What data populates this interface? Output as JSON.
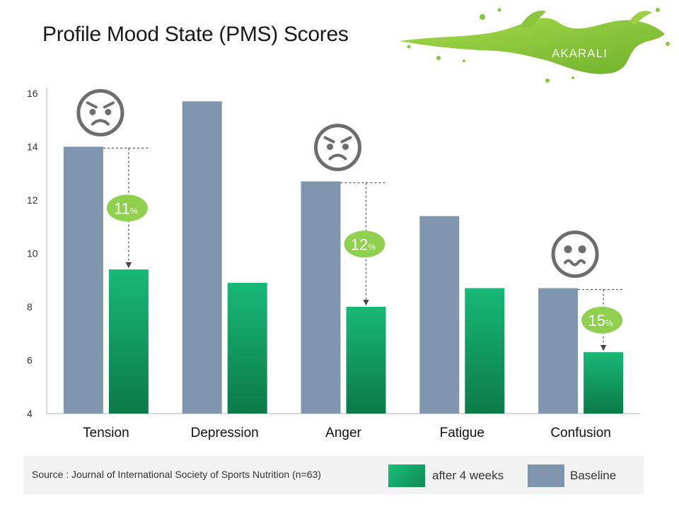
{
  "page": {
    "title": "Profile Mood State (PMS) Scores",
    "brand": "AKARALI"
  },
  "footer": {
    "source": "Source : Journal of International Society of Sports Nutrition (n=63)"
  },
  "legend": {
    "after": "after 4 weeks",
    "baseline": "Baseline"
  },
  "colors": {
    "baseline": "#7f96ae",
    "after_top": "#18b878",
    "after_bottom": "#0c7a48",
    "badge": "#8fd14f",
    "splash": "#8cc63f"
  },
  "chart_data": {
    "type": "bar",
    "categories": [
      "Tension",
      "Depression",
      "Anger",
      "Fatigue",
      "Confusion"
    ],
    "series": [
      {
        "name": "Baseline",
        "values": [
          14.0,
          15.7,
          12.7,
          11.4,
          8.7
        ]
      },
      {
        "name": "after 4 weeks",
        "values": [
          9.4,
          8.9,
          8.0,
          8.7,
          6.3
        ]
      }
    ],
    "ylim": [
      4,
      16
    ],
    "yticks": [
      4,
      6,
      8,
      10,
      12,
      14,
      16
    ],
    "annotations": [
      {
        "category": "Tension",
        "label": "11",
        "unit": "%",
        "icon": "angry-face-icon"
      },
      {
        "category": "Anger",
        "label": "12",
        "unit": "%",
        "icon": "angry-face-icon"
      },
      {
        "category": "Confusion",
        "label": "15",
        "unit": "%",
        "icon": "confused-face-icon"
      }
    ],
    "title": "Profile Mood State (PMS) Scores",
    "xlabel": "",
    "ylabel": "",
    "grid": false,
    "legend_position": "bottom-right"
  }
}
